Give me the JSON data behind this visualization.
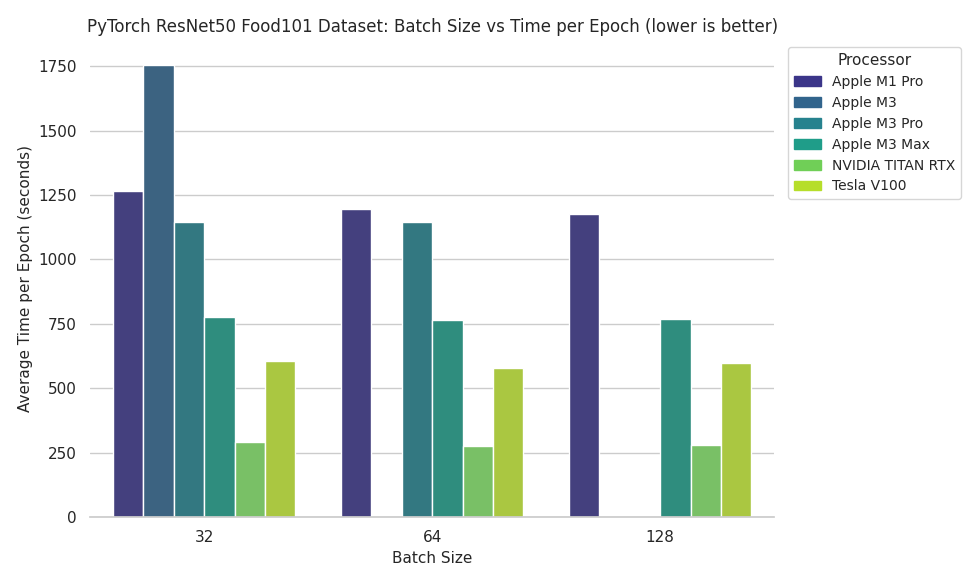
{
  "title": "PyTorch ResNet50 Food101 Dataset: Batch Size vs Time per Epoch (lower is better)",
  "xlabel": "Batch Size",
  "ylabel": "Average Time per Epoch (seconds)",
  "batch_sizes": [
    "32",
    "64",
    "128"
  ],
  "processors": [
    "Apple M1 Pro",
    "Apple M3",
    "Apple M3 Pro",
    "Apple M3 Max",
    "NVIDIA TITAN RTX",
    "Tesla V100"
  ],
  "data": {
    "Apple M1 Pro": [
      1265,
      1195,
      1175
    ],
    "Apple M3": [
      1755,
      null,
      null
    ],
    "Apple M3 Pro": [
      1145,
      1145,
      null
    ],
    "Apple M3 Max": [
      775,
      765,
      770
    ],
    "NVIDIA TITAN RTX": [
      290,
      278,
      282
    ],
    "Tesla V100": [
      605,
      578,
      598
    ]
  },
  "colors": [
    "#3b3589",
    "#31648c",
    "#26828e",
    "#1f9d89",
    "#70cf57",
    "#b6de2a"
  ],
  "legend_title": "Processor",
  "ylim": [
    0,
    1850
  ],
  "background_color": "#eaeaf2",
  "title_fontsize": 12,
  "axis_fontsize": 11,
  "tick_fontsize": 11
}
